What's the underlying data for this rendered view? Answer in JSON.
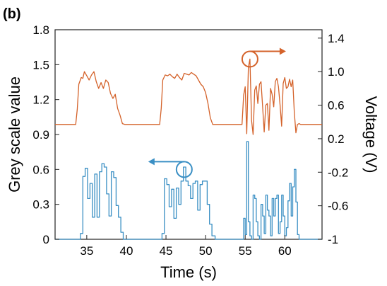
{
  "panel_label": "(b)",
  "chart_data": {
    "type": "line",
    "xlabel": "Time (s)",
    "ylabel_left": "Grey scale value",
    "ylabel_right": "Voltage (V)",
    "xlim": [
      31,
      64.7
    ],
    "ylim_left": [
      0,
      1.8
    ],
    "ylim_right": [
      -1,
      1.5
    ],
    "x_ticks": [
      35,
      40,
      45,
      50,
      55,
      60
    ],
    "y_ticks_left": [
      "0",
      "0.3",
      "0.6",
      "0.9",
      "1.2",
      "1.5",
      "1.8"
    ],
    "y_ticks_right": [
      "-1",
      "-0.6",
      "-0.2",
      "0.2",
      "0.6",
      "1.0",
      "1.4"
    ],
    "grid": false,
    "colors": {
      "voltage": "#d4622a",
      "grey": "#3a8fc4",
      "axis": "#222222"
    },
    "series": [
      {
        "axis": "right",
        "color": "#d4622a",
        "x": [
          31.0,
          33.6,
          33.8,
          34.0,
          34.3,
          34.5,
          34.7,
          35.0,
          35.3,
          35.6,
          35.9,
          36.2,
          36.5,
          36.8,
          37.1,
          37.4,
          37.7,
          38.0,
          38.3,
          38.6,
          38.9,
          39.2,
          39.5,
          39.8,
          40.1,
          44.2,
          44.4,
          44.6,
          44.9,
          45.2,
          45.5,
          45.8,
          46.1,
          46.4,
          46.7,
          47.0,
          47.3,
          47.6,
          47.9,
          48.2,
          48.5,
          48.8,
          49.1,
          49.4,
          49.7,
          50.0,
          50.3,
          50.6,
          50.9,
          51.1,
          54.6,
          54.8,
          55.0,
          55.2,
          55.4,
          55.6,
          55.8,
          56.0,
          56.2,
          56.4,
          56.6,
          56.8,
          57.0,
          57.2,
          57.4,
          57.6,
          57.8,
          58.0,
          58.2,
          58.4,
          58.6,
          58.8,
          59.0,
          59.2,
          59.4,
          59.6,
          59.8,
          60.0,
          60.2,
          60.4,
          60.6,
          60.8,
          61.0,
          61.2,
          61.4,
          61.6,
          61.8,
          62.0,
          62.2,
          64.7
        ],
        "y": [
          0.37,
          0.37,
          0.55,
          0.85,
          0.93,
          0.92,
          1.0,
          0.95,
          0.9,
          0.96,
          1.0,
          0.88,
          0.8,
          0.87,
          0.8,
          0.9,
          0.87,
          0.74,
          0.68,
          0.73,
          0.56,
          0.48,
          0.38,
          0.37,
          0.37,
          0.37,
          0.56,
          0.9,
          0.96,
          0.95,
          0.97,
          0.94,
          0.92,
          0.97,
          0.93,
          0.9,
          0.98,
          0.97,
          0.96,
          0.99,
          0.97,
          0.95,
          0.9,
          0.85,
          0.82,
          0.75,
          0.62,
          0.45,
          0.37,
          0.37,
          0.37,
          0.72,
          0.82,
          0.26,
          1.05,
          1.15,
          0.42,
          0.25,
          0.78,
          0.83,
          0.62,
          0.85,
          0.88,
          0.58,
          0.28,
          0.6,
          0.62,
          0.3,
          0.8,
          0.73,
          0.58,
          0.88,
          0.92,
          0.82,
          0.6,
          0.35,
          0.86,
          0.93,
          0.8,
          0.82,
          0.91,
          0.82,
          0.9,
          0.52,
          0.27,
          0.37,
          0.38,
          0.37,
          0.37,
          0.37
        ]
      },
      {
        "axis": "left",
        "color": "#3a8fc4",
        "step": true,
        "x": [
          31.0,
          34.0,
          34.2,
          34.5,
          34.8,
          35.1,
          35.4,
          35.7,
          36.0,
          36.3,
          36.6,
          36.9,
          37.2,
          37.5,
          37.8,
          38.1,
          38.4,
          38.7,
          39.0,
          39.3,
          39.6,
          40.0,
          44.3,
          44.5,
          44.8,
          45.1,
          45.4,
          45.7,
          46.0,
          46.3,
          46.6,
          46.9,
          47.2,
          47.5,
          47.8,
          48.1,
          48.4,
          48.7,
          49.0,
          49.3,
          49.6,
          49.9,
          50.2,
          50.5,
          50.8,
          51.2,
          54.5,
          54.8,
          55.0,
          55.2,
          55.4,
          55.6,
          55.8,
          56.0,
          56.2,
          56.4,
          56.6,
          56.8,
          57.0,
          57.2,
          57.4,
          57.6,
          57.8,
          58.0,
          58.2,
          58.4,
          58.6,
          58.8,
          59.0,
          59.2,
          59.4,
          59.6,
          59.8,
          60.0,
          60.2,
          60.4,
          60.6,
          60.8,
          61.0,
          61.2,
          61.4,
          61.6,
          61.8,
          64.7
        ],
        "y": [
          0,
          0,
          0.05,
          0.54,
          0.61,
          0.35,
          0.48,
          0.19,
          0.56,
          0.19,
          0.58,
          0.65,
          0.62,
          0.39,
          0.2,
          0.58,
          0.53,
          0.29,
          0.19,
          0.06,
          0,
          0,
          0,
          0.05,
          0.52,
          0.47,
          0.28,
          0.43,
          0.18,
          0.44,
          0.3,
          0.5,
          0.62,
          0.5,
          0.46,
          0.35,
          0.48,
          0.5,
          0.25,
          0.47,
          0.5,
          0.5,
          0.3,
          0.13,
          0.03,
          0,
          0,
          0.18,
          0.04,
          0.84,
          0.15,
          0.03,
          0.0,
          0.38,
          0.35,
          0.15,
          0.03,
          0.0,
          0.3,
          0.2,
          0.05,
          0.38,
          0.25,
          0.2,
          0.03,
          0.35,
          0.2,
          0.35,
          0.38,
          0.05,
          0.15,
          0.38,
          0.2,
          0.03,
          0.1,
          0.33,
          0.48,
          0.2,
          0.45,
          0.6,
          0.32,
          0.04,
          0,
          0
        ]
      }
    ],
    "annotations": [
      {
        "type": "circle-arrow",
        "series": 0,
        "x": 55.6,
        "y": 1.15,
        "direction": "right"
      },
      {
        "type": "circle-arrow",
        "series": 1,
        "x": 47.3,
        "y": 0.6,
        "direction": "left"
      }
    ]
  }
}
